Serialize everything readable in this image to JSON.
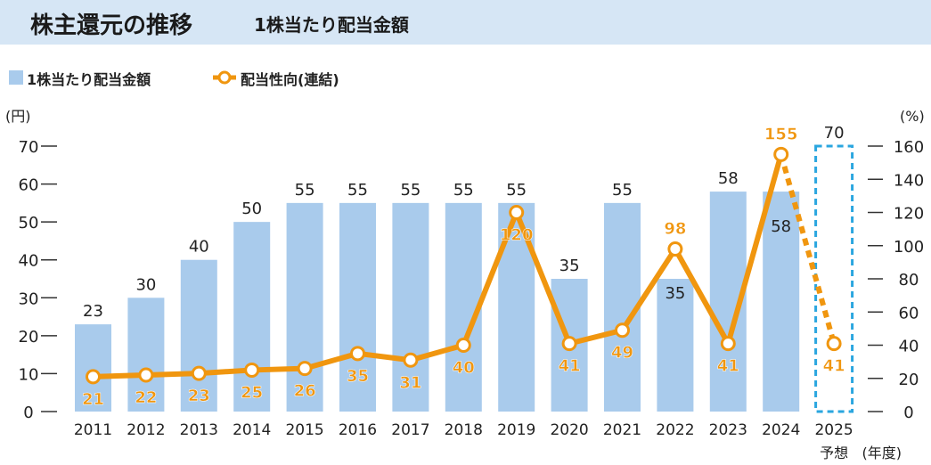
{
  "header": {
    "title": "株主還元の推移",
    "subtitle": "1株当たり配当金額"
  },
  "legend": {
    "bar_label": "1株当たり配当金額",
    "line_label": "配当性向(連結)"
  },
  "colors": {
    "bar": "#a9cbec",
    "line": "#f0960f",
    "forecast_border": "#2aa6df",
    "header_bg": "#d6e6f5"
  },
  "chart_data": {
    "type": "bar",
    "title": "1株当たり配当金額",
    "left_axis_unit": "(円)",
    "right_axis_unit": "(%)",
    "x_unit": "(年度)",
    "forecast_note": "予想",
    "ylim_left": [
      0,
      70
    ],
    "ylim_right": [
      0,
      160
    ],
    "yticks_left": [
      0,
      10,
      20,
      30,
      40,
      50,
      60,
      70
    ],
    "yticks_right": [
      0,
      20,
      40,
      60,
      80,
      100,
      120,
      140,
      160
    ],
    "categories": [
      "2011",
      "2012",
      "2013",
      "2014",
      "2015",
      "2016",
      "2017",
      "2018",
      "2019",
      "2020",
      "2021",
      "2022",
      "2023",
      "2024",
      "2025"
    ],
    "series": [
      {
        "name": "1株当たり配当金額",
        "axis": "left",
        "values": [
          23,
          30,
          40,
          50,
          55,
          55,
          55,
          55,
          55,
          35,
          55,
          35,
          58,
          58,
          70
        ],
        "labels": [
          "23",
          "30",
          "40",
          "50",
          "55",
          "55",
          "55",
          "55",
          "55",
          "35",
          "55",
          "35",
          "58",
          "58",
          "70"
        ]
      },
      {
        "name": "配当性向(連結)",
        "axis": "right",
        "values": [
          21,
          22,
          23,
          25,
          26,
          35,
          31,
          40,
          120,
          41,
          49,
          98,
          41,
          155,
          41
        ],
        "labels": [
          "21",
          "22",
          "23",
          "25",
          "26",
          "35",
          "31",
          "40",
          "120",
          "41",
          "49",
          "98",
          "41",
          "155",
          "41"
        ]
      }
    ]
  }
}
